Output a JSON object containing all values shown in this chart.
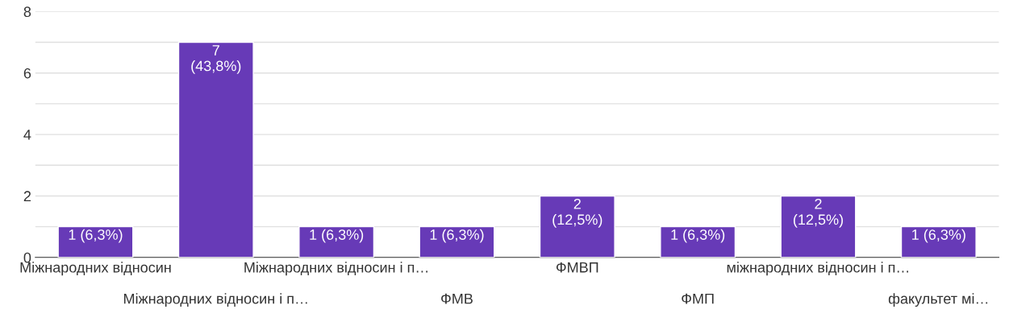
{
  "chart_data": {
    "type": "bar",
    "categories": [
      "Міжнародних відносин",
      "Міжнародних відносин і п…",
      "Міжнародних відносин і п…",
      "ФМВ",
      "ФМВП",
      "ФМП",
      "міжнародних відносин і п…",
      "факультет мі…"
    ],
    "values": [
      1,
      7,
      1,
      1,
      2,
      1,
      2,
      1
    ],
    "value_labels": [
      "1 (6,3%)",
      "7\n(43,8%)",
      "1 (6,3%)",
      "1 (6,3%)",
      "2\n(12,5%)",
      "1 (6,3%)",
      "2\n(12,5%)",
      "1 (6,3%)"
    ],
    "color": "#673ab7",
    "ylim": [
      0,
      8
    ],
    "yticks": [
      0,
      {
        "value": 1,
        "label": null
      },
      2,
      {
        "value": 3,
        "label": null
      },
      4,
      {
        "value": 5,
        "label": null
      },
      6,
      {
        "value": 7,
        "label": null
      },
      8
    ],
    "grid": "y"
  }
}
